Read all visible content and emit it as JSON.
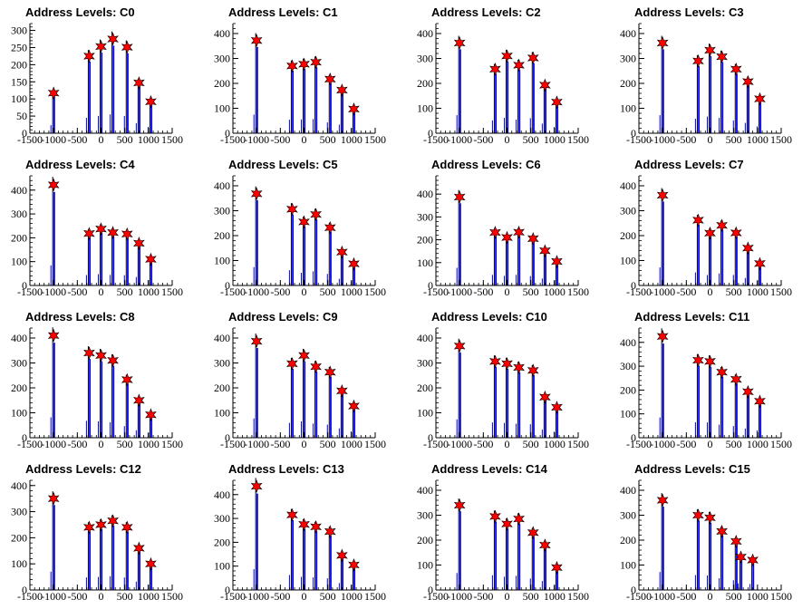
{
  "figure": {
    "title_prefix": "Address Levels: "
  },
  "chart_data": [
    {
      "type": "bar",
      "title": "Address Levels: C0",
      "xlim": [
        -1500,
        1500
      ],
      "ylim": [
        0,
        320
      ],
      "x_ticks": [
        -1500,
        -1000,
        -500,
        0,
        500,
        1000,
        1500
      ],
      "y_ticks": [
        0,
        50,
        100,
        150,
        200,
        250,
        300
      ],
      "peaks": [
        {
          "x": -1000,
          "y": 117
        },
        {
          "x": -250,
          "y": 225
        },
        {
          "x": 0,
          "y": 253
        },
        {
          "x": 250,
          "y": 275
        },
        {
          "x": 550,
          "y": 251
        },
        {
          "x": 800,
          "y": 147
        },
        {
          "x": 1050,
          "y": 92
        }
      ]
    },
    {
      "type": "bar",
      "title": "Address Levels: C1",
      "xlim": [
        -1500,
        1500
      ],
      "ylim": [
        0,
        440
      ],
      "x_ticks": [
        -1500,
        -1000,
        -500,
        0,
        500,
        1000,
        1500
      ],
      "y_ticks": [
        0,
        100,
        200,
        300,
        400
      ],
      "peaks": [
        {
          "x": -1000,
          "y": 372
        },
        {
          "x": -250,
          "y": 270
        },
        {
          "x": 0,
          "y": 277
        },
        {
          "x": 250,
          "y": 285
        },
        {
          "x": 550,
          "y": 217
        },
        {
          "x": 800,
          "y": 173
        },
        {
          "x": 1050,
          "y": 97
        }
      ]
    },
    {
      "type": "bar",
      "title": "Address Levels: C2",
      "xlim": [
        -1500,
        1500
      ],
      "ylim": [
        0,
        440
      ],
      "x_ticks": [
        -1500,
        -1000,
        -500,
        0,
        500,
        1000,
        1500
      ],
      "y_ticks": [
        0,
        100,
        200,
        300,
        400
      ],
      "peaks": [
        {
          "x": -1000,
          "y": 362
        },
        {
          "x": -250,
          "y": 257
        },
        {
          "x": 0,
          "y": 310
        },
        {
          "x": 250,
          "y": 273
        },
        {
          "x": 550,
          "y": 302
        },
        {
          "x": 800,
          "y": 193
        },
        {
          "x": 1050,
          "y": 125
        }
      ]
    },
    {
      "type": "bar",
      "title": "Address Levels: C3",
      "xlim": [
        -1500,
        1500
      ],
      "ylim": [
        0,
        440
      ],
      "x_ticks": [
        -1500,
        -1000,
        -500,
        0,
        500,
        1000,
        1500
      ],
      "y_ticks": [
        0,
        100,
        200,
        300,
        400
      ],
      "peaks": [
        {
          "x": -1000,
          "y": 362
        },
        {
          "x": -250,
          "y": 290
        },
        {
          "x": 0,
          "y": 333
        },
        {
          "x": 250,
          "y": 307
        },
        {
          "x": 550,
          "y": 257
        },
        {
          "x": 800,
          "y": 207
        },
        {
          "x": 1050,
          "y": 138
        }
      ]
    },
    {
      "type": "bar",
      "title": "Address Levels: C4",
      "xlim": [
        -1500,
        1500
      ],
      "ylim": [
        0,
        460
      ],
      "x_ticks": [
        -1500,
        -1000,
        -500,
        0,
        500,
        1000,
        1500
      ],
      "y_ticks": [
        0,
        100,
        200,
        300,
        400
      ],
      "peaks": [
        {
          "x": -1000,
          "y": 422
        },
        {
          "x": -250,
          "y": 218
        },
        {
          "x": 0,
          "y": 237
        },
        {
          "x": 250,
          "y": 222
        },
        {
          "x": 550,
          "y": 216
        },
        {
          "x": 800,
          "y": 177
        },
        {
          "x": 1050,
          "y": 110
        }
      ]
    },
    {
      "type": "bar",
      "title": "Address Levels: C5",
      "xlim": [
        -1500,
        1500
      ],
      "ylim": [
        0,
        440
      ],
      "x_ticks": [
        -1500,
        -1000,
        -500,
        0,
        500,
        1000,
        1500
      ],
      "y_ticks": [
        0,
        100,
        200,
        300,
        400
      ],
      "peaks": [
        {
          "x": -1000,
          "y": 368
        },
        {
          "x": -250,
          "y": 306
        },
        {
          "x": 0,
          "y": 255
        },
        {
          "x": 250,
          "y": 285
        },
        {
          "x": 550,
          "y": 232
        },
        {
          "x": 800,
          "y": 134
        },
        {
          "x": 1050,
          "y": 87
        }
      ]
    },
    {
      "type": "bar",
      "title": "Address Levels: C6",
      "xlim": [
        -1500,
        1500
      ],
      "ylim": [
        0,
        480
      ],
      "x_ticks": [
        -1500,
        -1000,
        -500,
        0,
        500,
        1000,
        1500
      ],
      "y_ticks": [
        0,
        100,
        200,
        300,
        400
      ],
      "peaks": [
        {
          "x": -1000,
          "y": 387
        },
        {
          "x": -250,
          "y": 232
        },
        {
          "x": 0,
          "y": 210
        },
        {
          "x": 250,
          "y": 233
        },
        {
          "x": 550,
          "y": 205
        },
        {
          "x": 800,
          "y": 152
        },
        {
          "x": 1050,
          "y": 105
        }
      ]
    },
    {
      "type": "bar",
      "title": "Address Levels: C7",
      "xlim": [
        -1500,
        1500
      ],
      "ylim": [
        0,
        440
      ],
      "x_ticks": [
        -1500,
        -1000,
        -500,
        0,
        500,
        1000,
        1500
      ],
      "y_ticks": [
        0,
        100,
        200,
        300,
        400
      ],
      "peaks": [
        {
          "x": -1000,
          "y": 362
        },
        {
          "x": -250,
          "y": 262
        },
        {
          "x": 0,
          "y": 210
        },
        {
          "x": 250,
          "y": 241
        },
        {
          "x": 550,
          "y": 211
        },
        {
          "x": 800,
          "y": 150
        },
        {
          "x": 1050,
          "y": 88
        }
      ]
    },
    {
      "type": "bar",
      "title": "Address Levels: C8",
      "xlim": [
        -1500,
        1500
      ],
      "ylim": [
        0,
        440
      ],
      "x_ticks": [
        -1500,
        -1000,
        -500,
        0,
        500,
        1000,
        1500
      ],
      "y_ticks": [
        0,
        100,
        200,
        300,
        400
      ],
      "peaks": [
        {
          "x": -1000,
          "y": 410
        },
        {
          "x": -250,
          "y": 340
        },
        {
          "x": 0,
          "y": 330
        },
        {
          "x": 250,
          "y": 310
        },
        {
          "x": 550,
          "y": 233
        },
        {
          "x": 800,
          "y": 150
        },
        {
          "x": 1050,
          "y": 92
        }
      ]
    },
    {
      "type": "bar",
      "title": "Address Levels: C9",
      "xlim": [
        -1500,
        1500
      ],
      "ylim": [
        0,
        440
      ],
      "x_ticks": [
        -1500,
        -1000,
        -500,
        0,
        500,
        1000,
        1500
      ],
      "y_ticks": [
        0,
        100,
        200,
        300,
        400
      ],
      "peaks": [
        {
          "x": -1000,
          "y": 387
        },
        {
          "x": -250,
          "y": 297
        },
        {
          "x": 0,
          "y": 330
        },
        {
          "x": 250,
          "y": 285
        },
        {
          "x": 550,
          "y": 263
        },
        {
          "x": 800,
          "y": 188
        },
        {
          "x": 1050,
          "y": 127
        }
      ]
    },
    {
      "type": "bar",
      "title": "Address Levels: C10",
      "xlim": [
        -1500,
        1500
      ],
      "ylim": [
        0,
        440
      ],
      "x_ticks": [
        -1500,
        -1000,
        -500,
        0,
        500,
        1000,
        1500
      ],
      "y_ticks": [
        0,
        100,
        200,
        300,
        400
      ],
      "peaks": [
        {
          "x": -1000,
          "y": 368
        },
        {
          "x": -250,
          "y": 306
        },
        {
          "x": 0,
          "y": 297
        },
        {
          "x": 250,
          "y": 282
        },
        {
          "x": 550,
          "y": 270
        },
        {
          "x": 800,
          "y": 163
        },
        {
          "x": 1050,
          "y": 122
        }
      ]
    },
    {
      "type": "bar",
      "title": "Address Levels: C11",
      "xlim": [
        -1500,
        1500
      ],
      "ylim": [
        0,
        460
      ],
      "x_ticks": [
        -1500,
        -1000,
        -500,
        0,
        500,
        1000,
        1500
      ],
      "y_ticks": [
        0,
        100,
        200,
        300,
        400
      ],
      "peaks": [
        {
          "x": -1000,
          "y": 425
        },
        {
          "x": -250,
          "y": 325
        },
        {
          "x": 0,
          "y": 320
        },
        {
          "x": 250,
          "y": 275
        },
        {
          "x": 550,
          "y": 245
        },
        {
          "x": 800,
          "y": 193
        },
        {
          "x": 1050,
          "y": 153
        }
      ]
    },
    {
      "type": "bar",
      "title": "Address Levels: C12",
      "xlim": [
        -1500,
        1500
      ],
      "ylim": [
        0,
        420
      ],
      "x_ticks": [
        -1500,
        -1000,
        -500,
        0,
        500,
        1000,
        1500
      ],
      "y_ticks": [
        0,
        100,
        200,
        300,
        400
      ],
      "peaks": [
        {
          "x": -1000,
          "y": 350
        },
        {
          "x": -250,
          "y": 240
        },
        {
          "x": 0,
          "y": 250
        },
        {
          "x": 250,
          "y": 265
        },
        {
          "x": 550,
          "y": 240
        },
        {
          "x": 800,
          "y": 160
        },
        {
          "x": 1050,
          "y": 100
        }
      ]
    },
    {
      "type": "bar",
      "title": "Address Levels: C13",
      "xlim": [
        -1500,
        1500
      ],
      "ylim": [
        0,
        460
      ],
      "x_ticks": [
        -1500,
        -1000,
        -500,
        0,
        500,
        1000,
        1500
      ],
      "y_ticks": [
        0,
        100,
        200,
        300,
        400
      ],
      "peaks": [
        {
          "x": -1000,
          "y": 435
        },
        {
          "x": -250,
          "y": 315
        },
        {
          "x": 0,
          "y": 275
        },
        {
          "x": 250,
          "y": 265
        },
        {
          "x": 550,
          "y": 245
        },
        {
          "x": 800,
          "y": 145
        },
        {
          "x": 1050,
          "y": 105
        }
      ]
    },
    {
      "type": "bar",
      "title": "Address Levels: C14",
      "xlim": [
        -1500,
        1500
      ],
      "ylim": [
        0,
        440
      ],
      "x_ticks": [
        -1500,
        -1000,
        -500,
        0,
        500,
        1000,
        1500
      ],
      "y_ticks": [
        0,
        100,
        200,
        300,
        400
      ],
      "peaks": [
        {
          "x": -1000,
          "y": 340
        },
        {
          "x": -250,
          "y": 295
        },
        {
          "x": 0,
          "y": 265
        },
        {
          "x": 250,
          "y": 285
        },
        {
          "x": 550,
          "y": 230
        },
        {
          "x": 800,
          "y": 180
        },
        {
          "x": 1050,
          "y": 90
        }
      ]
    },
    {
      "type": "bar",
      "title": "Address Levels: C15",
      "xlim": [
        -1500,
        1500
      ],
      "ylim": [
        0,
        440
      ],
      "x_ticks": [
        -1500,
        -1000,
        -500,
        0,
        500,
        1000,
        1500
      ],
      "y_ticks": [
        0,
        100,
        200,
        300,
        400
      ],
      "peaks": [
        {
          "x": -1000,
          "y": 360
        },
        {
          "x": -250,
          "y": 300
        },
        {
          "x": 0,
          "y": 290
        },
        {
          "x": 250,
          "y": 235
        },
        {
          "x": 550,
          "y": 195
        },
        {
          "x": 650,
          "y": 132
        },
        {
          "x": 900,
          "y": 120
        }
      ]
    }
  ],
  "colors": {
    "bar": "#0000ff",
    "marker": "#ff0000",
    "axis": "#000000",
    "spike": "#000000"
  }
}
